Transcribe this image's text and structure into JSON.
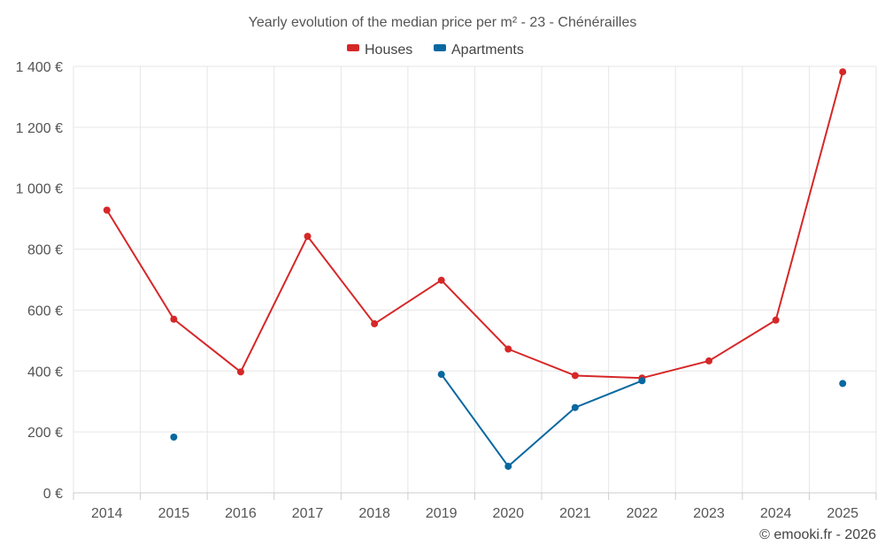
{
  "chart_data": {
    "type": "line",
    "title": "Yearly evolution of the median price per m² - 23 - Chénérailles",
    "categories": [
      "2014",
      "2015",
      "2016",
      "2017",
      "2018",
      "2019",
      "2020",
      "2021",
      "2022",
      "2023",
      "2024",
      "2025"
    ],
    "series": [
      {
        "name": "Houses",
        "color": "#d62728",
        "values": [
          928,
          570,
          397,
          842,
          555,
          698,
          472,
          385,
          377,
          433,
          567,
          1382
        ]
      },
      {
        "name": "Apartments",
        "color": "#0868a0",
        "values": [
          null,
          183,
          null,
          null,
          null,
          389,
          87,
          280,
          368,
          null,
          null,
          359
        ]
      }
    ],
    "ylim": [
      0,
      1400
    ],
    "yticks": [
      0,
      200,
      400,
      600,
      800,
      1000,
      1200,
      1400
    ],
    "ytick_labels": [
      "0 €",
      "200 €",
      "400 €",
      "600 €",
      "800 €",
      "1 000 €",
      "1 200 €",
      "1 400 €"
    ],
    "xlabel": "",
    "ylabel": "",
    "grid": true,
    "legend_position": "top-center"
  },
  "credit": "© emooki.fr - 2026"
}
